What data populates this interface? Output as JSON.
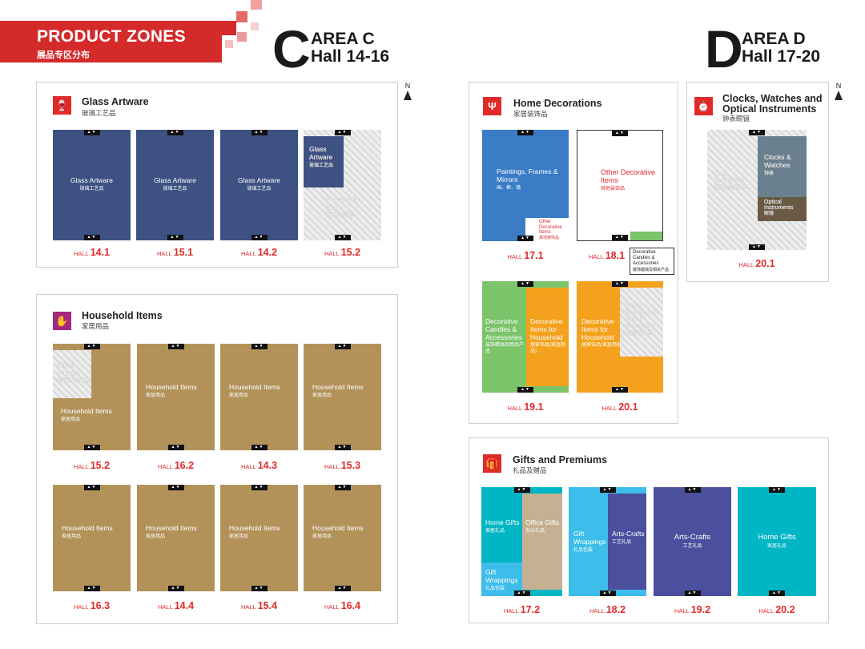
{
  "header": {
    "title_en": "PRODUCT ZONES",
    "title_cn": "展品专区分布"
  },
  "areas": {
    "c": {
      "letter": "C",
      "name": "AREA C",
      "halls": "Hall 14-16"
    },
    "d": {
      "letter": "D",
      "name": "AREA D",
      "halls": "Hall 17-20"
    }
  },
  "north_label": "N",
  "hall_word": "HALL",
  "door_glyph": "▲▼",
  "colors": {
    "red": "#e02a2a",
    "navy": "#3d5283",
    "gold": "#b3925a",
    "blue": "#3a7cc6",
    "green": "#7cc46a",
    "orange": "#f4a21e",
    "cyan": "#00b5c4",
    "sky": "#3cbdea",
    "purple": "#4a4f9e",
    "tan": "#c5b192",
    "brown": "#6b5a43",
    "slate": "#6a808e"
  },
  "glass": {
    "en": "Glass Artware",
    "cn": "玻璃工艺品",
    "halls": [
      {
        "no": "14.1",
        "zones": [
          {
            "en": "Glass Artware",
            "cn": "玻璃工艺品"
          }
        ]
      },
      {
        "no": "15.1",
        "zones": [
          {
            "en": "Glass Artware",
            "cn": "玻璃工艺品"
          }
        ]
      },
      {
        "no": "14.2",
        "zones": [
          {
            "en": "Glass Artware",
            "cn": "玻璃工艺品"
          }
        ]
      },
      {
        "no": "15.2",
        "zones": [
          {
            "en": "Glass Artware",
            "cn": "玻璃工艺品"
          },
          {
            "en": "Household Items",
            "cn": "家居用品展区"
          }
        ]
      }
    ]
  },
  "household": {
    "en": "Household Items",
    "cn": "家居用品",
    "halls": [
      {
        "no": "15.2",
        "zones": [
          {
            "en": "Household Items",
            "cn": "家居用品"
          },
          {
            "en": "Glass Artware",
            "cn": "玻璃工艺品展区"
          }
        ]
      },
      {
        "no": "16.2",
        "zones": [
          {
            "en": "Household Items",
            "cn": "家居用品"
          }
        ]
      },
      {
        "no": "14.3",
        "zones": [
          {
            "en": "Household Items",
            "cn": "家居用品"
          }
        ]
      },
      {
        "no": "15.3",
        "zones": [
          {
            "en": "Household Items",
            "cn": "家居用品"
          }
        ]
      },
      {
        "no": "16.3",
        "zones": [
          {
            "en": "Household Items",
            "cn": "家居用品"
          }
        ]
      },
      {
        "no": "14.4",
        "zones": [
          {
            "en": "Household Items",
            "cn": "家居用品"
          }
        ]
      },
      {
        "no": "15.4",
        "zones": [
          {
            "en": "Household Items",
            "cn": "家居用品"
          }
        ]
      },
      {
        "no": "16.4",
        "zones": [
          {
            "en": "Household Items",
            "cn": "家居用品"
          }
        ]
      }
    ]
  },
  "home_deco": {
    "en": "Home Decorations",
    "cn": "家居装饰品",
    "halls": [
      {
        "no": "17.1",
        "zones": [
          {
            "en": "Paintings, Frames & Mirrors",
            "cn": "画、框、镜"
          },
          {
            "en": "Other Decorative Items",
            "cn": "其他装饰品"
          }
        ]
      },
      {
        "no": "18.1",
        "zones": [
          {
            "en": "Other Decorative Items",
            "cn": "其他装饰品"
          }
        ]
      },
      {
        "no": "19.1",
        "zones": [
          {
            "en": "Decorative Candles & Accessories",
            "cn": "装饰蜡烛及相关产品"
          },
          {
            "en": "Decorative Items for Household",
            "cn": "居家饰品(家居用品)"
          }
        ]
      },
      {
        "no": "20.1",
        "zones": [
          {
            "en": "Decorative Items for Household",
            "cn": "居家饰品(家居用品)"
          },
          {
            "en": "Clocks, Watches and Optical Instruments",
            "cn": "钟表眼镜展区"
          }
        ]
      }
    ],
    "callout": {
      "en": "Decorative Candles & Accessories",
      "cn": "装饰蜡烛及相关产品"
    }
  },
  "clocks": {
    "en": "Clocks, Watches and Optical Instruments",
    "cn": "钟表眼镜",
    "halls": [
      {
        "no": "20.1",
        "zones": [
          {
            "en": "Home Decorations",
            "cn": "家居装饰品展区"
          },
          {
            "en": "Clocks & Watches",
            "cn": "钟表"
          },
          {
            "en": "Optical Instruments",
            "cn": "眼镜"
          }
        ]
      }
    ]
  },
  "gifts": {
    "en": "Gifts and Premiums",
    "cn": "礼品及赠品",
    "halls": [
      {
        "no": "17.2",
        "zones": [
          {
            "en": "Home Gifts",
            "cn": "家居礼品"
          },
          {
            "en": "Office Gifts",
            "cn": "办公礼品"
          },
          {
            "en": "Gift Wrappings",
            "cn": "礼品包装"
          }
        ]
      },
      {
        "no": "18.2",
        "zones": [
          {
            "en": "Gift Wrappings",
            "cn": "礼品包装"
          },
          {
            "en": "Arts-Crafts",
            "cn": "工艺礼品"
          }
        ]
      },
      {
        "no": "19.2",
        "zones": [
          {
            "en": "Arts-Crafts",
            "cn": "工艺礼品"
          }
        ]
      },
      {
        "no": "20.2",
        "zones": [
          {
            "en": "Home Gifts",
            "cn": "家居礼品"
          }
        ]
      }
    ]
  }
}
